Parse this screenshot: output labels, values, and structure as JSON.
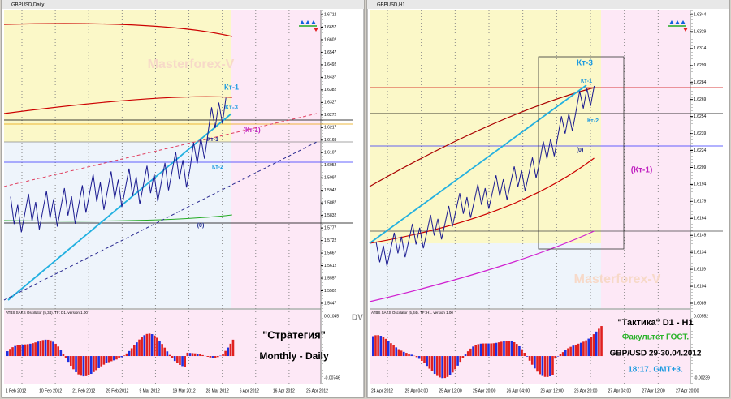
{
  "left": {
    "title": "GBPUSD,Daily",
    "price_labels": [
      "1.6712",
      "1.6657",
      "1.6602",
      "1.6547",
      "1.6492",
      "1.6437",
      "1.6382",
      "1.6327",
      "1.6272",
      "1.6217",
      "1.6163",
      "1.6107",
      "1.6052",
      "1.5997",
      "1.5942",
      "1.5887",
      "1.5832",
      "1.5777",
      "1.5722",
      "1.5667",
      "1.5612",
      "1.5557",
      "1.5502",
      "1.5447"
    ],
    "osc_labels": [
      "0.01045",
      "-0.00746"
    ],
    "dates": [
      "1 Feb 2012",
      "10 Feb 2012",
      "21 Feb 2012",
      "29 Feb 2012",
      "9 Mar 2012",
      "19 Mar 2012",
      "28 Mar 2012",
      "6 Apr 2012",
      "16 Apr 2012",
      "25 Apr 2012"
    ],
    "osc_title": "ATBS SAKS Oscillator (5,34). TF: D1. version 1.00",
    "annotations": [
      "Masterforex-V",
      "Кт-1",
      "Кт-3",
      "(Кт-1)",
      "Кт-1",
      "Кт-2",
      "(0)",
      "DV"
    ],
    "caption": [
      "\"Стратегия\"",
      "Monthly - Daily"
    ]
  },
  "right": {
    "title": "GBPUSD,H1",
    "price_labels": [
      "1.6344",
      "1.6329",
      "1.6314",
      "1.6299",
      "1.6284",
      "1.6269",
      "1.6254",
      "1.6239",
      "1.6224",
      "1.6209",
      "1.6194",
      "1.6179",
      "1.6164",
      "1.6149",
      "1.6134",
      "1.6119",
      "1.6104",
      "1.6089"
    ],
    "osc_labels": [
      "0.00552",
      "-0.00239"
    ],
    "dates": [
      "24 Apr 2012",
      "25 Apr 04:00",
      "25 Apr 12:00",
      "25 Apr 20:00",
      "26 Apr 04:00",
      "26 Apr 12:00",
      "26 Apr 20:00",
      "27 Apr 04:00",
      "27 Apr 12:00",
      "27 Apr 20:00"
    ],
    "osc_title": "ATBS SAKS Oscillator (5,34). TF: H1. version 1.00",
    "annotations": [
      "Кт-3",
      "Кт-1",
      "Кт-2",
      "(0)",
      "(Кт-1)",
      "Masterforex-V"
    ],
    "caption": [
      "\"Тактика\" D1 - H1",
      "Факультет ГОСТ.",
      "GBP/USD 29-30.04.2012",
      "18:17. GMT+3."
    ]
  }
}
